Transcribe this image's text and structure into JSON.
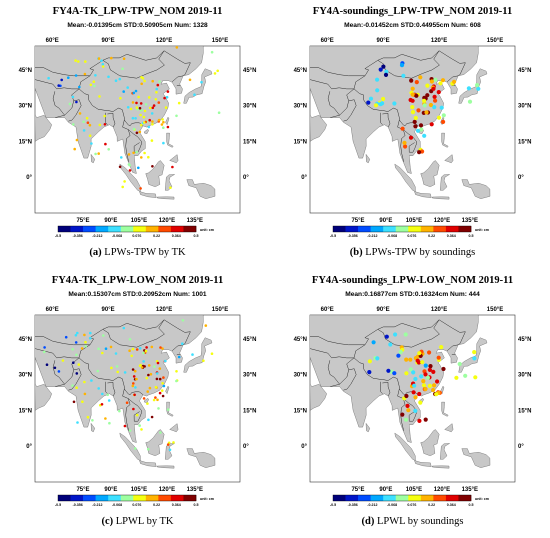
{
  "panels": [
    {
      "title": "FY4A-TK_LPW-TPW_NOM 2019-11",
      "stats": "Mean:-0.01395cm  STD:0.50905cm  Num:  1328",
      "label": "(a)",
      "caption": "LPWs-TPW by TK",
      "obs": "tk",
      "seed": 11
    },
    {
      "title": "FY4A-soundings_LPW-TPW_NOM 2019-11",
      "stats": "Mean:-0.01452cm  STD:0.44955cm  Num:  608",
      "label": "(b)",
      "caption": "LPWs-TPW by soundings",
      "obs": "sound",
      "seed": 23
    },
    {
      "title": "FY4A-TK_LPW-LOW_NOM 2019-11",
      "stats": "Mean:0.15307cm  STD:0.20952cm  Num:  1001",
      "label": "(c)",
      "caption": "LPWL by TK",
      "obs": "tk",
      "seed": 37
    },
    {
      "title": "FY4A-soundings_LPW-LOW_NOM 2019-11",
      "stats": "Mean:0.16877cm  STD:0.16324cm  Num:  444",
      "label": "(d)",
      "caption": "LPWL by soundings",
      "obs": "sound",
      "seed": 53
    }
  ],
  "top_lon_labels": [
    "60°E",
    "90°E",
    "120°E",
    "150°E"
  ],
  "bottom_lon_labels": [
    "75°E",
    "90°E",
    "105°E",
    "120°E",
    "135°E"
  ],
  "lat_labels": [
    "45°N",
    "30°N",
    "15°N",
    "0°"
  ],
  "colorbar": {
    "ticks": [
      "-0.5",
      "-0.356",
      "-0.212",
      "-0.068",
      "0.076",
      "0.22",
      "0.364",
      "0.5"
    ],
    "unit": "unit: cm",
    "range": [
      -0.5,
      0.5
    ],
    "colors": [
      "#00007a",
      "#0015c8",
      "#004cff",
      "#00a8ff",
      "#3de0ff",
      "#9dffa0",
      "#f5ff10",
      "#ffb300",
      "#ff4a00",
      "#e00000",
      "#800000"
    ]
  },
  "colors": {
    "land": "#c8c8c8",
    "ocean": "#ffffff",
    "border": "#1a1a1a"
  },
  "icons": {
    "map": "map-panel"
  }
}
